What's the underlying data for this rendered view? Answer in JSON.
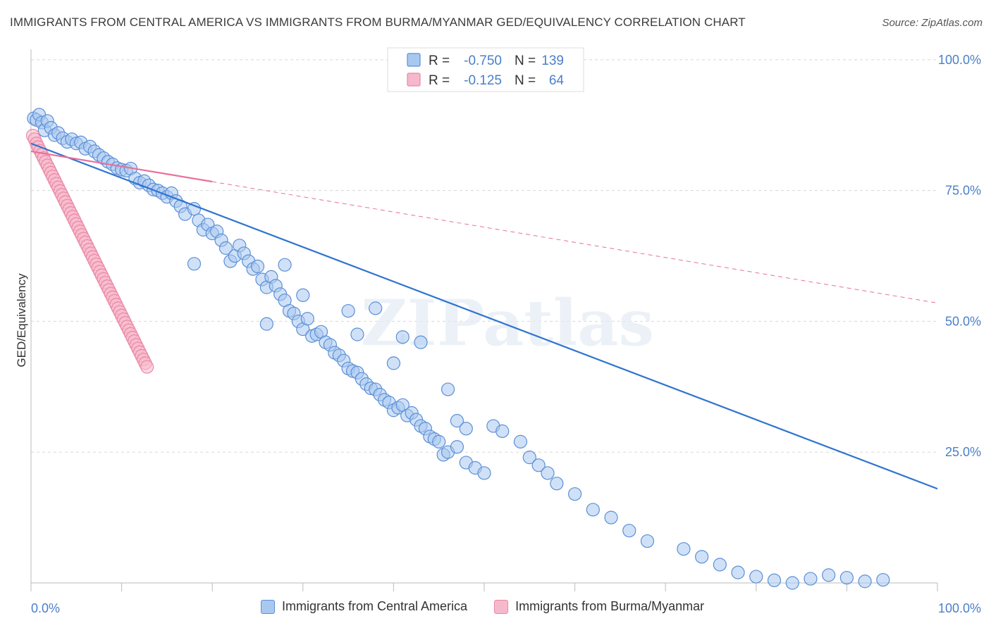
{
  "title": "IMMIGRANTS FROM CENTRAL AMERICA VS IMMIGRANTS FROM BURMA/MYANMAR GED/EQUIVALENCY CORRELATION CHART",
  "source": "Source: ZipAtlas.com",
  "watermark": "ZIPatlas",
  "colors": {
    "blue_fill": "#a9c8f0",
    "blue_stroke": "#5b8fd6",
    "blue_line": "#2f74d0",
    "pink_fill": "#f7b8cb",
    "pink_stroke": "#e888a6",
    "pink_line": "#e8709a",
    "axis_label": "#4a7fc9",
    "grid": "#d8d8d8"
  },
  "legend": {
    "r_label": "R =",
    "n_label": "N =",
    "rows": [
      {
        "series": "blue",
        "r": "-0.750",
        "n": "139"
      },
      {
        "series": "pink",
        "r": "-0.125",
        "n": "64"
      }
    ]
  },
  "chart_data": {
    "type": "scatter",
    "title": "IMMIGRANTS FROM CENTRAL AMERICA VS IMMIGRANTS FROM BURMA/MYANMAR GED/EQUIVALENCY CORRELATION CHART",
    "xlabel": "",
    "ylabel": "GED/Equivalency",
    "xlim": [
      0,
      100
    ],
    "ylim": [
      0,
      102
    ],
    "x_tick_labels": [
      "0.0%",
      "100.0%"
    ],
    "y_ticks": [
      25,
      50,
      75,
      100
    ],
    "y_tick_labels": [
      "25.0%",
      "50.0%",
      "75.0%",
      "100.0%"
    ],
    "grid": true,
    "legend_placement": "top-center",
    "series": [
      {
        "name": "Immigrants from Central America",
        "r": -0.75,
        "n": 139,
        "trend": {
          "x": [
            0,
            100
          ],
          "y": [
            84,
            18
          ]
        },
        "points": [
          {
            "x": 0.3,
            "y": 88.8
          },
          {
            "x": 0.6,
            "y": 88.5
          },
          {
            "x": 0.9,
            "y": 89.5
          },
          {
            "x": 1.2,
            "y": 88.0
          },
          {
            "x": 1.5,
            "y": 86.5
          },
          {
            "x": 1.8,
            "y": 88.3
          },
          {
            "x": 2.2,
            "y": 87.0
          },
          {
            "x": 2.6,
            "y": 85.6
          },
          {
            "x": 3.0,
            "y": 86.0
          },
          {
            "x": 3.5,
            "y": 85.0
          },
          {
            "x": 4.0,
            "y": 84.3
          },
          {
            "x": 4.5,
            "y": 84.8
          },
          {
            "x": 5.0,
            "y": 84.0
          },
          {
            "x": 5.5,
            "y": 84.2
          },
          {
            "x": 6.0,
            "y": 83.0
          },
          {
            "x": 6.5,
            "y": 83.4
          },
          {
            "x": 7.0,
            "y": 82.5
          },
          {
            "x": 7.5,
            "y": 81.8
          },
          {
            "x": 8.0,
            "y": 81.2
          },
          {
            "x": 8.5,
            "y": 80.5
          },
          {
            "x": 9.0,
            "y": 80.0
          },
          {
            "x": 9.5,
            "y": 79.3
          },
          {
            "x": 10.0,
            "y": 79.0
          },
          {
            "x": 10.5,
            "y": 78.8
          },
          {
            "x": 11.0,
            "y": 79.2
          },
          {
            "x": 11.5,
            "y": 77.3
          },
          {
            "x": 12.0,
            "y": 76.5
          },
          {
            "x": 12.5,
            "y": 76.8
          },
          {
            "x": 13.0,
            "y": 76.0
          },
          {
            "x": 13.5,
            "y": 75.2
          },
          {
            "x": 14.0,
            "y": 75.0
          },
          {
            "x": 14.5,
            "y": 74.5
          },
          {
            "x": 15.0,
            "y": 73.8
          },
          {
            "x": 15.5,
            "y": 74.5
          },
          {
            "x": 16.0,
            "y": 73.0
          },
          {
            "x": 16.5,
            "y": 72.0
          },
          {
            "x": 17.0,
            "y": 70.5
          },
          {
            "x": 18.0,
            "y": 71.5
          },
          {
            "x": 18.5,
            "y": 69.3
          },
          {
            "x": 19.0,
            "y": 67.5
          },
          {
            "x": 19.5,
            "y": 68.5
          },
          {
            "x": 20.0,
            "y": 66.8
          },
          {
            "x": 20.5,
            "y": 67.2
          },
          {
            "x": 21.0,
            "y": 65.5
          },
          {
            "x": 21.5,
            "y": 64.0
          },
          {
            "x": 22.0,
            "y": 61.5
          },
          {
            "x": 22.5,
            "y": 62.5
          },
          {
            "x": 23.0,
            "y": 64.5
          },
          {
            "x": 23.5,
            "y": 63.0
          },
          {
            "x": 24.0,
            "y": 61.5
          },
          {
            "x": 24.5,
            "y": 60.0
          },
          {
            "x": 25.0,
            "y": 60.5
          },
          {
            "x": 25.5,
            "y": 58.0
          },
          {
            "x": 26.0,
            "y": 56.5
          },
          {
            "x": 26.5,
            "y": 58.5
          },
          {
            "x": 27.0,
            "y": 56.8
          },
          {
            "x": 27.5,
            "y": 55.2
          },
          {
            "x": 28.0,
            "y": 54.0
          },
          {
            "x": 28.5,
            "y": 52.0
          },
          {
            "x": 29.0,
            "y": 51.5
          },
          {
            "x": 29.5,
            "y": 50.0
          },
          {
            "x": 30.0,
            "y": 48.5
          },
          {
            "x": 30.5,
            "y": 50.5
          },
          {
            "x": 31.0,
            "y": 47.2
          },
          {
            "x": 31.5,
            "y": 47.5
          },
          {
            "x": 32.0,
            "y": 48.0
          },
          {
            "x": 32.5,
            "y": 46.0
          },
          {
            "x": 33.0,
            "y": 45.5
          },
          {
            "x": 33.5,
            "y": 44.0
          },
          {
            "x": 34.0,
            "y": 43.5
          },
          {
            "x": 34.5,
            "y": 42.5
          },
          {
            "x": 35.0,
            "y": 41.0
          },
          {
            "x": 35.5,
            "y": 40.5
          },
          {
            "x": 36.0,
            "y": 40.2
          },
          {
            "x": 36.5,
            "y": 39.0
          },
          {
            "x": 37.0,
            "y": 38.0
          },
          {
            "x": 37.5,
            "y": 37.2
          },
          {
            "x": 38.0,
            "y": 37.0
          },
          {
            "x": 38.5,
            "y": 36.0
          },
          {
            "x": 39.0,
            "y": 35.0
          },
          {
            "x": 39.5,
            "y": 34.5
          },
          {
            "x": 40.0,
            "y": 33.0
          },
          {
            "x": 40.5,
            "y": 33.5
          },
          {
            "x": 41.0,
            "y": 34.0
          },
          {
            "x": 41.5,
            "y": 32.0
          },
          {
            "x": 42.0,
            "y": 32.5
          },
          {
            "x": 42.5,
            "y": 31.2
          },
          {
            "x": 43.0,
            "y": 30.0
          },
          {
            "x": 43.5,
            "y": 29.5
          },
          {
            "x": 44.0,
            "y": 28.0
          },
          {
            "x": 44.5,
            "y": 27.5
          },
          {
            "x": 45.0,
            "y": 27.0
          },
          {
            "x": 45.5,
            "y": 24.5
          },
          {
            "x": 46.0,
            "y": 25.0
          },
          {
            "x": 47.0,
            "y": 26.0
          },
          {
            "x": 48.0,
            "y": 23.0
          },
          {
            "x": 49.0,
            "y": 22.0
          },
          {
            "x": 50.0,
            "y": 21.0
          },
          {
            "x": 18.0,
            "y": 61.0
          },
          {
            "x": 26.0,
            "y": 49.5
          },
          {
            "x": 28.0,
            "y": 60.8
          },
          {
            "x": 30.0,
            "y": 55.0
          },
          {
            "x": 35.0,
            "y": 52.0
          },
          {
            "x": 36.0,
            "y": 47.5
          },
          {
            "x": 38.0,
            "y": 52.5
          },
          {
            "x": 40.0,
            "y": 42.0
          },
          {
            "x": 41.0,
            "y": 47.0
          },
          {
            "x": 43.0,
            "y": 46.0
          },
          {
            "x": 46.0,
            "y": 37.0
          },
          {
            "x": 47.0,
            "y": 31.0
          },
          {
            "x": 48.0,
            "y": 29.5
          },
          {
            "x": 51.0,
            "y": 30.0
          },
          {
            "x": 52.0,
            "y": 29.0
          },
          {
            "x": 54.0,
            "y": 27.0
          },
          {
            "x": 55.0,
            "y": 24.0
          },
          {
            "x": 56.0,
            "y": 22.5
          },
          {
            "x": 57.0,
            "y": 21.0
          },
          {
            "x": 58.0,
            "y": 19.0
          },
          {
            "x": 60.0,
            "y": 17.0
          },
          {
            "x": 62.0,
            "y": 14.0
          },
          {
            "x": 64.0,
            "y": 12.5
          },
          {
            "x": 66.0,
            "y": 10.0
          },
          {
            "x": 68.0,
            "y": 8.0
          },
          {
            "x": 72.0,
            "y": 6.5
          },
          {
            "x": 74.0,
            "y": 5.0
          },
          {
            "x": 76.0,
            "y": 3.5
          },
          {
            "x": 78.0,
            "y": 2.0
          },
          {
            "x": 80.0,
            "y": 1.2
          },
          {
            "x": 82.0,
            "y": 0.5
          },
          {
            "x": 84.0,
            "y": 0.0
          },
          {
            "x": 86.0,
            "y": 0.8
          },
          {
            "x": 88.0,
            "y": 1.5
          },
          {
            "x": 90.0,
            "y": 1.0
          },
          {
            "x": 92.0,
            "y": 0.3
          },
          {
            "x": 94.0,
            "y": 0.6
          }
        ]
      },
      {
        "name": "Immigrants from Burma/Myanmar",
        "r": -0.125,
        "n": 64,
        "trend": {
          "x": [
            0,
            100
          ],
          "y": [
            82.5,
            53.5
          ]
        },
        "trend_solid_until_x": 20,
        "points": [
          {
            "x": 0.2,
            "y": 85.5
          },
          {
            "x": 0.4,
            "y": 84.8
          },
          {
            "x": 0.6,
            "y": 84.0
          },
          {
            "x": 0.8,
            "y": 83.3
          },
          {
            "x": 1.0,
            "y": 82.6
          },
          {
            "x": 1.2,
            "y": 81.9
          },
          {
            "x": 1.4,
            "y": 81.2
          },
          {
            "x": 1.6,
            "y": 80.5
          },
          {
            "x": 1.8,
            "y": 79.8
          },
          {
            "x": 2.0,
            "y": 79.1
          },
          {
            "x": 2.2,
            "y": 78.4
          },
          {
            "x": 2.4,
            "y": 77.7
          },
          {
            "x": 2.6,
            "y": 77.0
          },
          {
            "x": 2.8,
            "y": 76.3
          },
          {
            "x": 3.0,
            "y": 75.6
          },
          {
            "x": 3.2,
            "y": 74.9
          },
          {
            "x": 3.4,
            "y": 74.2
          },
          {
            "x": 3.6,
            "y": 73.5
          },
          {
            "x": 3.8,
            "y": 72.8
          },
          {
            "x": 4.0,
            "y": 72.1
          },
          {
            "x": 4.2,
            "y": 71.4
          },
          {
            "x": 4.4,
            "y": 70.7
          },
          {
            "x": 4.6,
            "y": 70.0
          },
          {
            "x": 4.8,
            "y": 69.3
          },
          {
            "x": 5.0,
            "y": 68.6
          },
          {
            "x": 5.2,
            "y": 67.9
          },
          {
            "x": 5.4,
            "y": 67.2
          },
          {
            "x": 5.6,
            "y": 66.5
          },
          {
            "x": 5.8,
            "y": 65.8
          },
          {
            "x": 6.0,
            "y": 65.1
          },
          {
            "x": 6.2,
            "y": 64.4
          },
          {
            "x": 6.4,
            "y": 63.7
          },
          {
            "x": 6.6,
            "y": 63.0
          },
          {
            "x": 6.8,
            "y": 62.3
          },
          {
            "x": 7.0,
            "y": 61.6
          },
          {
            "x": 7.2,
            "y": 60.9
          },
          {
            "x": 7.4,
            "y": 60.2
          },
          {
            "x": 7.6,
            "y": 59.5
          },
          {
            "x": 7.8,
            "y": 58.8
          },
          {
            "x": 8.0,
            "y": 58.1
          },
          {
            "x": 8.2,
            "y": 57.4
          },
          {
            "x": 8.4,
            "y": 56.7
          },
          {
            "x": 8.6,
            "y": 56.0
          },
          {
            "x": 8.8,
            "y": 55.3
          },
          {
            "x": 9.0,
            "y": 54.6
          },
          {
            "x": 9.2,
            "y": 53.9
          },
          {
            "x": 9.4,
            "y": 53.2
          },
          {
            "x": 9.6,
            "y": 52.5
          },
          {
            "x": 9.8,
            "y": 51.8
          },
          {
            "x": 10.0,
            "y": 51.1
          },
          {
            "x": 10.2,
            "y": 50.4
          },
          {
            "x": 10.4,
            "y": 49.7
          },
          {
            "x": 10.6,
            "y": 49.0
          },
          {
            "x": 10.8,
            "y": 48.3
          },
          {
            "x": 11.0,
            "y": 47.6
          },
          {
            "x": 11.2,
            "y": 46.9
          },
          {
            "x": 11.4,
            "y": 46.2
          },
          {
            "x": 11.6,
            "y": 45.5
          },
          {
            "x": 11.8,
            "y": 44.8
          },
          {
            "x": 12.0,
            "y": 44.1
          },
          {
            "x": 12.2,
            "y": 43.4
          },
          {
            "x": 12.4,
            "y": 42.7
          },
          {
            "x": 12.6,
            "y": 42.0
          },
          {
            "x": 12.8,
            "y": 41.3
          }
        ]
      }
    ]
  }
}
